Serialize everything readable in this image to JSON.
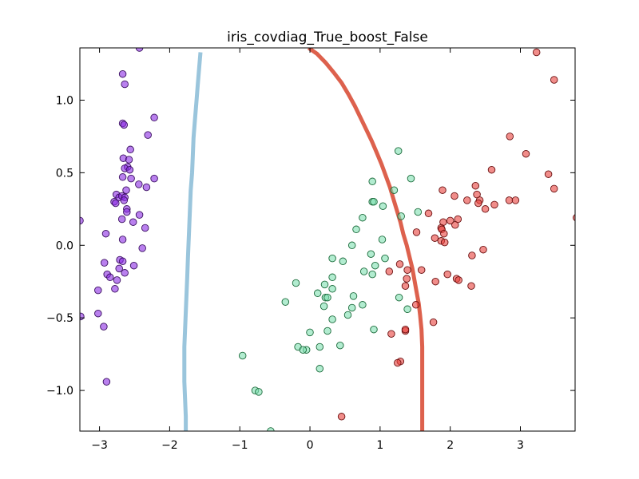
{
  "chart_data": {
    "type": "scatter",
    "title": "iris_covdiag_True_boost_False",
    "xlabel": "",
    "ylabel": "",
    "xlim": [
      -3.28,
      3.78
    ],
    "ylim": [
      -1.28,
      1.36
    ],
    "xticks": [
      -3,
      -2,
      -1,
      0,
      1,
      2,
      3
    ],
    "yticks": [
      -1.0,
      -0.5,
      0.0,
      0.5,
      1.0
    ],
    "xtick_labels": [
      "−3",
      "−2",
      "−1",
      "0",
      "1",
      "2",
      "3"
    ],
    "ytick_labels": [
      "−1.0",
      "−0.5",
      "0.0",
      "0.5",
      "1.0"
    ],
    "grid": false,
    "series": [
      {
        "color": "#8a2be2",
        "edge": "#3a1060",
        "points": [
          [
            -2.43,
            1.36
          ],
          [
            -2.67,
            1.18
          ],
          [
            -2.64,
            1.11
          ],
          [
            -2.67,
            0.84
          ],
          [
            -2.65,
            0.83
          ],
          [
            -2.22,
            0.88
          ],
          [
            -2.31,
            0.76
          ],
          [
            -2.56,
            0.66
          ],
          [
            -2.66,
            0.6
          ],
          [
            -2.58,
            0.59
          ],
          [
            -2.6,
            0.54
          ],
          [
            -2.64,
            0.53
          ],
          [
            -2.57,
            0.52
          ],
          [
            -2.67,
            0.47
          ],
          [
            -2.55,
            0.46
          ],
          [
            -2.22,
            0.46
          ],
          [
            -2.44,
            0.42
          ],
          [
            -2.33,
            0.4
          ],
          [
            -2.62,
            0.38
          ],
          [
            -2.76,
            0.35
          ],
          [
            -2.72,
            0.33
          ],
          [
            -2.68,
            0.34
          ],
          [
            -2.64,
            0.33
          ],
          [
            -2.65,
            0.31
          ],
          [
            -2.79,
            0.3
          ],
          [
            -2.77,
            0.29
          ],
          [
            -2.61,
            0.25
          ],
          [
            -2.61,
            0.23
          ],
          [
            -2.43,
            0.21
          ],
          [
            -2.68,
            0.18
          ],
          [
            -3.28,
            0.17
          ],
          [
            -2.52,
            0.16
          ],
          [
            -2.35,
            0.12
          ],
          [
            -2.91,
            0.08
          ],
          [
            -2.67,
            0.04
          ],
          [
            -2.39,
            -0.02
          ],
          [
            -2.71,
            -0.1
          ],
          [
            -2.67,
            -0.11
          ],
          [
            -2.51,
            -0.14
          ],
          [
            -2.93,
            -0.12
          ],
          [
            -2.72,
            -0.16
          ],
          [
            -2.64,
            -0.19
          ],
          [
            -2.89,
            -0.2
          ],
          [
            -2.85,
            -0.22
          ],
          [
            -2.75,
            -0.24
          ],
          [
            -2.78,
            -0.3
          ],
          [
            -3.02,
            -0.31
          ],
          [
            -3.02,
            -0.47
          ],
          [
            -3.27,
            -0.49
          ],
          [
            -2.94,
            -0.56
          ],
          [
            -2.9,
            -0.94
          ]
        ]
      },
      {
        "color": "#7fe0b0",
        "edge": "#1a6a3a",
        "points": [
          [
            1.26,
            0.65
          ],
          [
            1.44,
            0.46
          ],
          [
            0.89,
            0.44
          ],
          [
            1.2,
            0.38
          ],
          [
            0.89,
            0.3
          ],
          [
            0.91,
            0.3
          ],
          [
            1.04,
            0.27
          ],
          [
            1.54,
            0.23
          ],
          [
            1.3,
            0.2
          ],
          [
            0.75,
            0.19
          ],
          [
            0.66,
            0.11
          ],
          [
            1.03,
            0.04
          ],
          [
            0.6,
            0.0
          ],
          [
            0.87,
            -0.06
          ],
          [
            1.07,
            -0.09
          ],
          [
            0.32,
            -0.09
          ],
          [
            0.47,
            -0.11
          ],
          [
            0.93,
            -0.14
          ],
          [
            0.77,
            -0.18
          ],
          [
            0.89,
            -0.2
          ],
          [
            0.32,
            -0.22
          ],
          [
            -0.2,
            -0.26
          ],
          [
            0.21,
            -0.27
          ],
          [
            0.32,
            -0.3
          ],
          [
            0.11,
            -0.33
          ],
          [
            0.22,
            -0.36
          ],
          [
            0.25,
            -0.36
          ],
          [
            0.62,
            -0.35
          ],
          [
            -0.35,
            -0.39
          ],
          [
            0.75,
            -0.41
          ],
          [
            0.2,
            -0.42
          ],
          [
            0.6,
            -0.43
          ],
          [
            1.39,
            -0.44
          ],
          [
            1.27,
            -0.36
          ],
          [
            0.54,
            -0.48
          ],
          [
            0.32,
            -0.51
          ],
          [
            0.25,
            -0.59
          ],
          [
            0.0,
            -0.6
          ],
          [
            0.91,
            -0.58
          ],
          [
            -0.17,
            -0.7
          ],
          [
            0.14,
            -0.7
          ],
          [
            0.43,
            -0.69
          ],
          [
            -0.05,
            -0.72
          ],
          [
            -0.1,
            -0.72
          ],
          [
            -0.96,
            -0.76
          ],
          [
            0.14,
            -0.85
          ],
          [
            -0.78,
            -1.0
          ],
          [
            -0.73,
            -1.01
          ],
          [
            -0.56,
            -1.28
          ]
        ]
      },
      {
        "color": "#e8413c",
        "edge": "#6a1010",
        "points": [
          [
            3.23,
            1.33
          ],
          [
            3.48,
            1.14
          ],
          [
            2.85,
            0.75
          ],
          [
            3.08,
            0.63
          ],
          [
            2.59,
            0.52
          ],
          [
            3.4,
            0.49
          ],
          [
            2.36,
            0.41
          ],
          [
            3.48,
            0.39
          ],
          [
            1.89,
            0.38
          ],
          [
            2.38,
            0.35
          ],
          [
            2.06,
            0.34
          ],
          [
            2.42,
            0.31
          ],
          [
            2.24,
            0.31
          ],
          [
            2.84,
            0.31
          ],
          [
            2.93,
            0.31
          ],
          [
            2.4,
            0.29
          ],
          [
            2.63,
            0.28
          ],
          [
            2.5,
            0.25
          ],
          [
            1.69,
            0.22
          ],
          [
            3.8,
            0.19
          ],
          [
            2.11,
            0.18
          ],
          [
            2.0,
            0.17
          ],
          [
            1.9,
            0.16
          ],
          [
            2.07,
            0.14
          ],
          [
            1.87,
            0.12
          ],
          [
            1.88,
            0.11
          ],
          [
            1.52,
            0.09
          ],
          [
            1.91,
            0.08
          ],
          [
            1.78,
            0.05
          ],
          [
            1.87,
            0.03
          ],
          [
            1.92,
            0.02
          ],
          [
            2.47,
            -0.03
          ],
          [
            2.31,
            -0.07
          ],
          [
            1.28,
            -0.13
          ],
          [
            1.39,
            -0.17
          ],
          [
            1.59,
            -0.17
          ],
          [
            1.13,
            -0.18
          ],
          [
            1.96,
            -0.2
          ],
          [
            1.38,
            -0.23
          ],
          [
            2.09,
            -0.23
          ],
          [
            2.12,
            -0.24
          ],
          [
            1.79,
            -0.25
          ],
          [
            1.36,
            -0.28
          ],
          [
            2.3,
            -0.28
          ],
          [
            1.51,
            -0.41
          ],
          [
            1.76,
            -0.53
          ],
          [
            1.16,
            -0.61
          ],
          [
            1.36,
            -0.59
          ],
          [
            1.36,
            -0.58
          ],
          [
            1.29,
            -0.8
          ],
          [
            1.25,
            -0.81
          ],
          [
            0.45,
            -1.18
          ]
        ]
      }
    ],
    "boundaries": [
      {
        "color": "#8fbfd8",
        "points": [
          [
            -1.56,
            1.33
          ],
          [
            -1.58,
            1.22
          ],
          [
            -1.6,
            1.1
          ],
          [
            -1.62,
            0.98
          ],
          [
            -1.64,
            0.86
          ],
          [
            -1.66,
            0.74
          ],
          [
            -1.67,
            0.62
          ],
          [
            -1.68,
            0.5
          ],
          [
            -1.7,
            0.38
          ],
          [
            -1.71,
            0.26
          ],
          [
            -1.72,
            0.14
          ],
          [
            -1.73,
            0.02
          ],
          [
            -1.74,
            -0.1
          ],
          [
            -1.75,
            -0.22
          ],
          [
            -1.76,
            -0.34
          ],
          [
            -1.77,
            -0.46
          ],
          [
            -1.78,
            -0.58
          ],
          [
            -1.79,
            -0.7
          ],
          [
            -1.79,
            -0.82
          ],
          [
            -1.79,
            -0.94
          ],
          [
            -1.78,
            -1.06
          ],
          [
            -1.77,
            -1.18
          ],
          [
            -1.77,
            -1.28
          ]
        ]
      },
      {
        "color": "#d9503a",
        "points": [
          [
            -0.02,
            1.36
          ],
          [
            0.1,
            1.32
          ],
          [
            0.22,
            1.26
          ],
          [
            0.34,
            1.19
          ],
          [
            0.45,
            1.12
          ],
          [
            0.55,
            1.04
          ],
          [
            0.64,
            0.96
          ],
          [
            0.72,
            0.88
          ],
          [
            0.8,
            0.8
          ],
          [
            0.88,
            0.72
          ],
          [
            0.95,
            0.64
          ],
          [
            1.02,
            0.56
          ],
          [
            1.08,
            0.48
          ],
          [
            1.14,
            0.4
          ],
          [
            1.19,
            0.32
          ],
          [
            1.24,
            0.24
          ],
          [
            1.29,
            0.16
          ],
          [
            1.33,
            0.08
          ],
          [
            1.38,
            0.0
          ],
          [
            1.42,
            -0.08
          ],
          [
            1.46,
            -0.16
          ],
          [
            1.49,
            -0.24
          ],
          [
            1.52,
            -0.32
          ],
          [
            1.55,
            -0.4
          ],
          [
            1.57,
            -0.48
          ],
          [
            1.59,
            -0.58
          ],
          [
            1.6,
            -0.7
          ],
          [
            1.6,
            -0.82
          ],
          [
            1.6,
            -0.94
          ],
          [
            1.6,
            -1.06
          ],
          [
            1.6,
            -1.18
          ],
          [
            1.6,
            -1.28
          ]
        ]
      }
    ]
  }
}
